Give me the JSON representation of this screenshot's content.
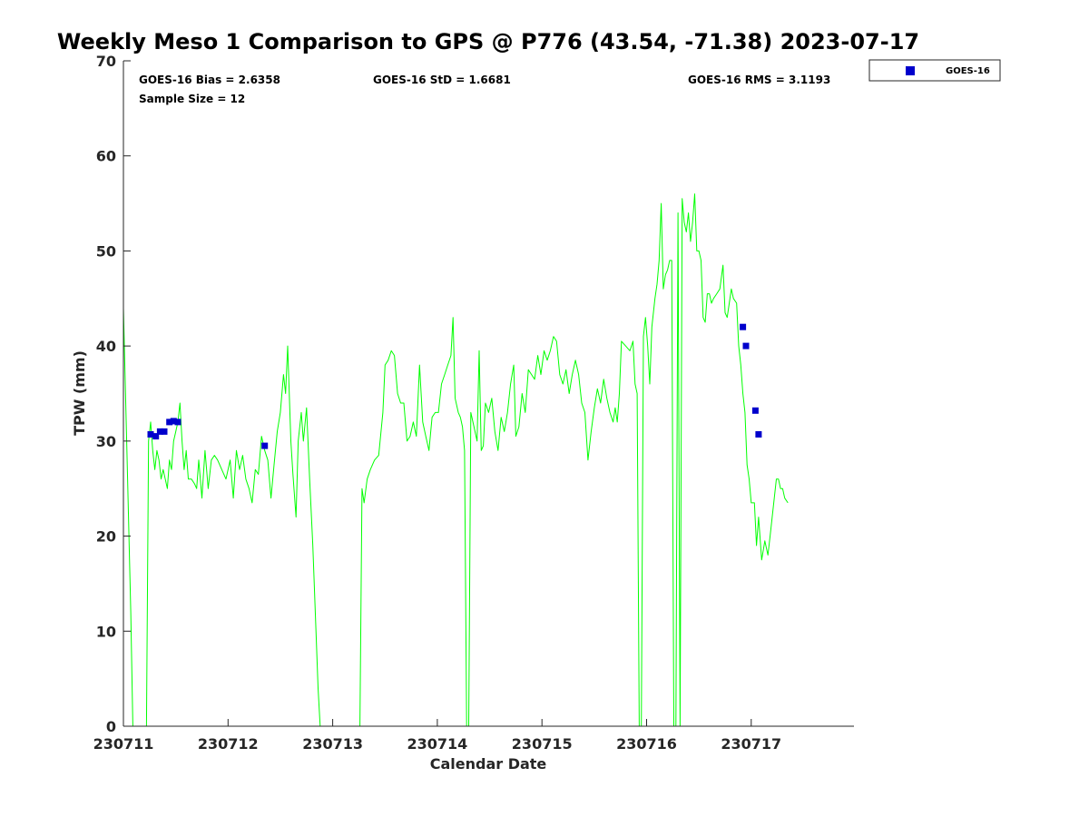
{
  "chart_data": {
    "type": "line",
    "title": "Weekly Meso 1 Comparison to GPS @ P776 (43.54, -71.38) 2023-07-17",
    "xlabel": "Calendar Date",
    "ylabel": "TPW (mm)",
    "xlim": [
      0,
      7
    ],
    "ylim": [
      0,
      70
    ],
    "y_ticks": [
      0,
      10,
      20,
      30,
      40,
      50,
      60,
      70
    ],
    "x_ticks": [
      {
        "value": 0,
        "label": "230711"
      },
      {
        "value": 1,
        "label": "230712"
      },
      {
        "value": 2,
        "label": "230713"
      },
      {
        "value": 3,
        "label": "230714"
      },
      {
        "value": 4,
        "label": "230715"
      },
      {
        "value": 5,
        "label": "230716"
      },
      {
        "value": 6,
        "label": "230717"
      }
    ],
    "grid": false,
    "legend_position": "outside-top-right",
    "stats": {
      "bias": "GOES-16 Bias = 2.6358",
      "std": "GOES-16 StD = 1.6681",
      "rms": "GOES-16 RMS = 3.1193",
      "sample": "Sample Size = 12"
    },
    "series": [
      {
        "kind": "line",
        "color": "#00ff00",
        "points": [
          [
            0.0,
            44
          ],
          [
            0.04,
            26
          ],
          [
            0.07,
            12
          ],
          [
            0.09,
            0
          ],
          [
            0.22,
            0
          ],
          [
            0.24,
            30
          ],
          [
            0.26,
            32
          ],
          [
            0.28,
            29
          ],
          [
            0.3,
            27
          ],
          [
            0.32,
            29
          ],
          [
            0.34,
            28
          ],
          [
            0.36,
            26
          ],
          [
            0.38,
            27
          ],
          [
            0.4,
            26
          ],
          [
            0.42,
            25
          ],
          [
            0.44,
            28
          ],
          [
            0.46,
            27
          ],
          [
            0.48,
            30
          ],
          [
            0.5,
            31
          ],
          [
            0.52,
            32
          ],
          [
            0.54,
            34
          ],
          [
            0.56,
            30
          ],
          [
            0.58,
            27
          ],
          [
            0.6,
            29
          ],
          [
            0.62,
            26
          ],
          [
            0.65,
            26
          ],
          [
            0.68,
            25.5
          ],
          [
            0.7,
            25
          ],
          [
            0.72,
            28
          ],
          [
            0.75,
            24
          ],
          [
            0.78,
            29
          ],
          [
            0.81,
            25
          ],
          [
            0.84,
            28
          ],
          [
            0.87,
            28.5
          ],
          [
            0.9,
            28
          ],
          [
            0.94,
            27
          ],
          [
            0.98,
            26
          ],
          [
            1.02,
            28
          ],
          [
            1.05,
            24
          ],
          [
            1.08,
            29
          ],
          [
            1.11,
            27
          ],
          [
            1.14,
            28.5
          ],
          [
            1.17,
            26
          ],
          [
            1.2,
            25
          ],
          [
            1.23,
            23.5
          ],
          [
            1.26,
            27
          ],
          [
            1.29,
            26.5
          ],
          [
            1.32,
            30.5
          ],
          [
            1.35,
            29
          ],
          [
            1.38,
            28
          ],
          [
            1.41,
            24
          ],
          [
            1.44,
            27.5
          ],
          [
            1.47,
            31
          ],
          [
            1.5,
            33
          ],
          [
            1.53,
            37
          ],
          [
            1.55,
            35
          ],
          [
            1.57,
            40
          ],
          [
            1.6,
            30
          ],
          [
            1.62,
            26.5
          ],
          [
            1.65,
            22
          ],
          [
            1.67,
            30
          ],
          [
            1.7,
            33
          ],
          [
            1.72,
            30
          ],
          [
            1.75,
            33.5
          ],
          [
            1.78,
            26
          ],
          [
            1.81,
            19
          ],
          [
            1.84,
            10
          ],
          [
            1.86,
            4
          ],
          [
            1.88,
            0
          ],
          [
            2.26,
            0
          ],
          [
            2.28,
            25
          ],
          [
            2.3,
            23.5
          ],
          [
            2.33,
            26
          ],
          [
            2.36,
            27
          ],
          [
            2.4,
            28
          ],
          [
            2.44,
            28.5
          ],
          [
            2.48,
            33
          ],
          [
            2.5,
            38
          ],
          [
            2.53,
            38.5
          ],
          [
            2.56,
            39.5
          ],
          [
            2.59,
            39
          ],
          [
            2.62,
            35
          ],
          [
            2.65,
            34
          ],
          [
            2.68,
            34
          ],
          [
            2.71,
            30
          ],
          [
            2.74,
            30.5
          ],
          [
            2.77,
            32
          ],
          [
            2.8,
            30.5
          ],
          [
            2.83,
            38
          ],
          [
            2.86,
            32
          ],
          [
            2.89,
            30.5
          ],
          [
            2.92,
            29
          ],
          [
            2.95,
            32.5
          ],
          [
            2.98,
            33
          ],
          [
            3.01,
            33
          ],
          [
            3.04,
            36
          ],
          [
            3.07,
            37
          ],
          [
            3.1,
            38
          ],
          [
            3.13,
            39
          ],
          [
            3.15,
            43
          ],
          [
            3.17,
            34.5
          ],
          [
            3.2,
            33
          ],
          [
            3.22,
            32.5
          ],
          [
            3.24,
            31.5
          ],
          [
            3.26,
            29
          ],
          [
            3.28,
            0
          ],
          [
            3.3,
            0
          ],
          [
            3.32,
            33
          ],
          [
            3.35,
            31.5
          ],
          [
            3.38,
            30
          ],
          [
            3.4,
            39.5
          ],
          [
            3.42,
            29
          ],
          [
            3.44,
            29.5
          ],
          [
            3.46,
            34
          ],
          [
            3.49,
            33
          ],
          [
            3.52,
            34.5
          ],
          [
            3.55,
            31
          ],
          [
            3.58,
            29
          ],
          [
            3.61,
            32.5
          ],
          [
            3.64,
            31
          ],
          [
            3.67,
            33
          ],
          [
            3.7,
            36
          ],
          [
            3.73,
            38
          ],
          [
            3.75,
            30.5
          ],
          [
            3.78,
            31.5
          ],
          [
            3.81,
            35
          ],
          [
            3.84,
            33
          ],
          [
            3.87,
            37.5
          ],
          [
            3.9,
            37
          ],
          [
            3.93,
            36.5
          ],
          [
            3.96,
            39
          ],
          [
            3.99,
            37
          ],
          [
            4.02,
            39.5
          ],
          [
            4.05,
            38.5
          ],
          [
            4.08,
            39.5
          ],
          [
            4.11,
            41
          ],
          [
            4.14,
            40.5
          ],
          [
            4.17,
            37
          ],
          [
            4.2,
            36
          ],
          [
            4.23,
            37.5
          ],
          [
            4.26,
            35
          ],
          [
            4.29,
            37
          ],
          [
            4.32,
            38.5
          ],
          [
            4.35,
            37
          ],
          [
            4.38,
            34
          ],
          [
            4.41,
            33
          ],
          [
            4.44,
            28
          ],
          [
            4.47,
            31
          ],
          [
            4.5,
            33.5
          ],
          [
            4.53,
            35.5
          ],
          [
            4.56,
            34
          ],
          [
            4.59,
            36.5
          ],
          [
            4.62,
            34.5
          ],
          [
            4.65,
            33
          ],
          [
            4.68,
            32
          ],
          [
            4.7,
            33.5
          ],
          [
            4.72,
            32
          ],
          [
            4.74,
            35
          ],
          [
            4.76,
            40.5
          ],
          [
            4.8,
            40
          ],
          [
            4.84,
            39.5
          ],
          [
            4.87,
            40.5
          ],
          [
            4.89,
            36
          ],
          [
            4.91,
            35
          ],
          [
            4.93,
            0
          ],
          [
            4.95,
            0
          ],
          [
            4.97,
            41
          ],
          [
            4.99,
            43
          ],
          [
            5.01,
            40
          ],
          [
            5.03,
            36
          ],
          [
            5.05,
            42
          ],
          [
            5.08,
            45
          ],
          [
            5.1,
            46.5
          ],
          [
            5.12,
            49
          ],
          [
            5.14,
            55
          ],
          [
            5.16,
            46
          ],
          [
            5.18,
            47.5
          ],
          [
            5.2,
            48
          ],
          [
            5.22,
            49
          ],
          [
            5.24,
            49
          ],
          [
            5.26,
            0
          ],
          [
            5.28,
            0
          ],
          [
            5.3,
            54
          ],
          [
            5.32,
            0
          ],
          [
            5.34,
            55.5
          ],
          [
            5.36,
            53
          ],
          [
            5.38,
            52
          ],
          [
            5.4,
            54
          ],
          [
            5.42,
            51
          ],
          [
            5.44,
            53
          ],
          [
            5.46,
            56
          ],
          [
            5.48,
            50
          ],
          [
            5.5,
            50
          ],
          [
            5.52,
            49
          ],
          [
            5.54,
            43
          ],
          [
            5.56,
            42.5
          ],
          [
            5.58,
            45.5
          ],
          [
            5.6,
            45.5
          ],
          [
            5.62,
            44.5
          ],
          [
            5.64,
            45
          ],
          [
            5.67,
            45.5
          ],
          [
            5.7,
            46
          ],
          [
            5.73,
            48.5
          ],
          [
            5.75,
            43.5
          ],
          [
            5.77,
            43
          ],
          [
            5.79,
            44.5
          ],
          [
            5.81,
            46
          ],
          [
            5.83,
            45
          ],
          [
            5.86,
            44.5
          ],
          [
            5.88,
            40
          ],
          [
            5.9,
            38
          ],
          [
            5.92,
            35
          ],
          [
            5.94,
            33
          ],
          [
            5.96,
            27.5
          ],
          [
            5.98,
            26
          ],
          [
            6.0,
            23.5
          ],
          [
            6.03,
            23.5
          ],
          [
            6.05,
            19
          ],
          [
            6.07,
            22
          ],
          [
            6.1,
            17.5
          ],
          [
            6.13,
            19.5
          ],
          [
            6.16,
            18
          ],
          [
            6.18,
            20
          ],
          [
            6.2,
            22
          ],
          [
            6.22,
            24
          ],
          [
            6.24,
            26
          ],
          [
            6.26,
            26
          ],
          [
            6.28,
            25
          ],
          [
            6.3,
            25
          ],
          [
            6.32,
            24
          ],
          [
            6.35,
            23.5
          ]
        ]
      },
      {
        "kind": "scatter",
        "name": "GOES-16",
        "color": "#0000cc",
        "points": [
          [
            0.26,
            30.7
          ],
          [
            0.31,
            30.5
          ],
          [
            0.35,
            31.0
          ],
          [
            0.39,
            31.0
          ],
          [
            0.44,
            32.0
          ],
          [
            0.48,
            32.1
          ],
          [
            0.52,
            32.0
          ],
          [
            1.35,
            29.5
          ],
          [
            5.92,
            42.0
          ],
          [
            5.95,
            40.0
          ],
          [
            6.04,
            33.2
          ],
          [
            6.07,
            30.7
          ]
        ]
      }
    ]
  }
}
